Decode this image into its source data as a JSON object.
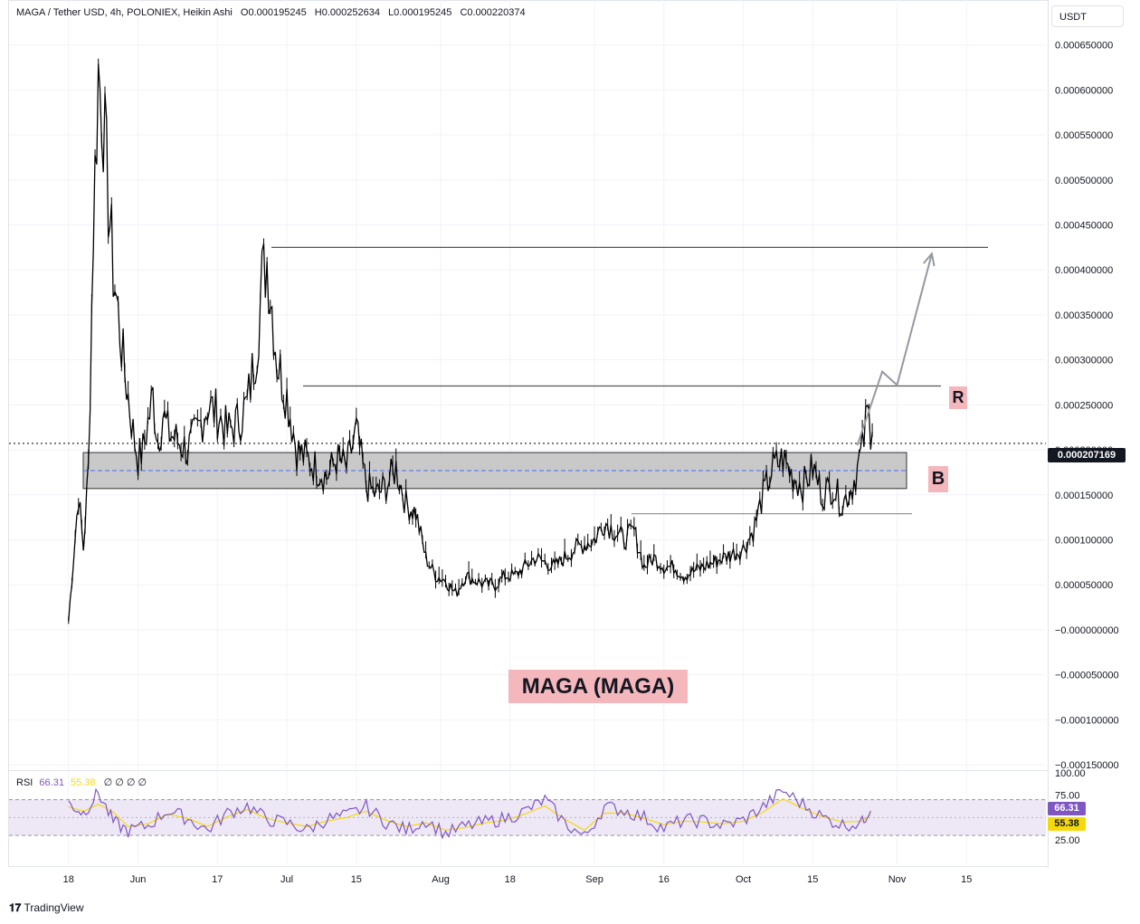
{
  "header": {
    "pair": "MAGA / Tether USD, 4h, POLONIEX, Heikin Ashi",
    "open": "O0.000195245",
    "high": "H0.000252634",
    "low": "L0.000195245",
    "close": "C0.000220374"
  },
  "currency_selector": "USDT",
  "last_price_label": "0.000207169",
  "annotations": {
    "resistance": "R",
    "breakout": "B",
    "title": "MAGA (MAGA)"
  },
  "rsi": {
    "label": "RSI",
    "value": "66.31",
    "ma_value": "55.38",
    "extra": "∅ ∅ ∅ ∅",
    "tag_value": "66.31",
    "tag_ma": "55.38"
  },
  "footer": {
    "brand": "TradingView"
  },
  "colors": {
    "candles": "#000000",
    "zone_fill": "#c3c3c3",
    "dashed": "#4a6cf7",
    "arrow": "#9598a1",
    "rsi_line": "#7e57c2",
    "rsi_ma": "#f5d90a",
    "rsi_band": "#ede7f6",
    "annotation_bg": "#f4b7bc"
  },
  "chart_data": {
    "type": "line",
    "title": "MAGA / Tether USD, 4h, POLONIEX, Heikin Ashi",
    "y_axis_ticks": [
      "0.000650000",
      "0.000600000",
      "0.000550000",
      "0.000500000",
      "0.000450000",
      "0.000400000",
      "0.000350000",
      "0.000300000",
      "0.000250000",
      "0.000200000",
      "0.000150000",
      "0.000100000",
      "0.000050000",
      "−0.000000000",
      "−0.000050000",
      "−0.000100000",
      "−0.000150000"
    ],
    "y_tick_values": [
      0.00065,
      0.0006,
      0.00055,
      0.0005,
      0.00045,
      0.0004,
      0.00035,
      0.0003,
      0.00025,
      0.0002,
      0.00015,
      0.0001,
      5e-05,
      0,
      -5e-05,
      -0.0001,
      -0.00015
    ],
    "ylim": [
      -0.000155,
      0.0007
    ],
    "x_axis_ticks": [
      {
        "label": "18",
        "day": 0
      },
      {
        "label": "Jun",
        "day": 14
      },
      {
        "label": "17",
        "day": 30
      },
      {
        "label": "Jul",
        "day": 44
      },
      {
        "label": "15",
        "day": 58
      },
      {
        "label": "Aug",
        "day": 75
      },
      {
        "label": "18",
        "day": 89
      },
      {
        "label": "Sep",
        "day": 106
      },
      {
        "label": "16",
        "day": 120
      },
      {
        "label": "Oct",
        "day": 136
      },
      {
        "label": "15",
        "day": 150
      },
      {
        "label": "Nov",
        "day": 167
      },
      {
        "label": "15",
        "day": 181
      }
    ],
    "xlim": [
      -12,
      197
    ],
    "price_series": {
      "name": "MAGA/USDT",
      "day": [
        0,
        1,
        2,
        3,
        4,
        5,
        6,
        7,
        8,
        9,
        10,
        11,
        12,
        13,
        14,
        15,
        16,
        17,
        18,
        19,
        20,
        22,
        24,
        26,
        28,
        30,
        32,
        34,
        36,
        38,
        39,
        40,
        41,
        42,
        43,
        44,
        46,
        48,
        50,
        52,
        54,
        56,
        58,
        60,
        62,
        64,
        66,
        68,
        70,
        72,
        74,
        76,
        78,
        80,
        82,
        84,
        86,
        88,
        90,
        94,
        98,
        102,
        106,
        108,
        110,
        112,
        114,
        116,
        118,
        120,
        122,
        124,
        128,
        132,
        136,
        138,
        140,
        142,
        144,
        146,
        148,
        150,
        152,
        154,
        156,
        158,
        159,
        160,
        161,
        162
      ],
      "price": [
        1e-05,
        8e-05,
        0.00015,
        9e-05,
        0.00018,
        0.00045,
        0.00062,
        0.00057,
        0.00048,
        0.0004,
        0.00035,
        0.0003,
        0.00026,
        0.00022,
        0.00019,
        0.0002,
        0.00023,
        0.00026,
        0.00021,
        0.00024,
        0.00022,
        0.00021,
        0.0002,
        0.00022,
        0.00025,
        0.00024,
        0.00022,
        0.00023,
        0.00025,
        0.00032,
        0.00039,
        0.00041,
        0.00036,
        0.0003,
        0.00028,
        0.00026,
        0.0002,
        0.00019,
        0.00018,
        0.00017,
        0.00019,
        0.00018,
        0.00022,
        0.00016,
        0.00015,
        0.00016,
        0.00018,
        0.00014,
        0.00013,
        8e-05,
        6e-05,
        5.5e-05,
        4e-05,
        6e-05,
        5.5e-05,
        5e-05,
        5e-05,
        6e-05,
        6e-05,
        8e-05,
        7e-05,
        9e-05,
        0.0001,
        0.00012,
        0.00011,
        0.0001,
        0.00011,
        7e-05,
        8e-05,
        7e-05,
        7e-05,
        6e-05,
        7e-05,
        8e-05,
        9e-05,
        0.00011,
        0.00015,
        0.00018,
        0.00019,
        0.00017,
        0.00016,
        0.00018,
        0.00015,
        0.00016,
        0.00014,
        0.00016,
        0.00018,
        0.0002,
        0.00024,
        0.00022
      ]
    },
    "levels": {
      "upper_target": 0.000425,
      "resistance": 0.000271,
      "last_price": 0.000207169,
      "zone_top": 0.000197,
      "zone_bottom": 0.000157,
      "zone_mid": 0.000177,
      "support_line": 0.000129
    },
    "projection_path": [
      {
        "day": 159,
        "price": 0.000205
      },
      {
        "day": 164,
        "price": 0.000287
      },
      {
        "day": 167,
        "price": 0.000272
      },
      {
        "day": 174,
        "price": 0.000418
      }
    ],
    "rsi_series": {
      "name": "RSI",
      "ylim": [
        0,
        100
      ],
      "ticks": [
        "100.00",
        "75.00",
        "25.00"
      ],
      "band": [
        30,
        70
      ],
      "day": [
        0,
        3,
        6,
        9,
        12,
        16,
        20,
        24,
        28,
        32,
        36,
        40,
        44,
        48,
        52,
        56,
        60,
        64,
        68,
        72,
        76,
        80,
        84,
        88,
        92,
        96,
        100,
        104,
        108,
        112,
        116,
        120,
        124,
        128,
        132,
        136,
        140,
        144,
        148,
        152,
        156,
        160,
        162
      ],
      "value": [
        66,
        55,
        78,
        45,
        35,
        41,
        58,
        49,
        36,
        55,
        63,
        48,
        44,
        36,
        48,
        52,
        62,
        45,
        36,
        47,
        32,
        40,
        45,
        49,
        57,
        70,
        44,
        28,
        62,
        58,
        50,
        38,
        47,
        46,
        41,
        47,
        62,
        80,
        65,
        50,
        42,
        44,
        66
      ],
      "ma": [
        62,
        57,
        65,
        56,
        40,
        43,
        54,
        49,
        40,
        51,
        59,
        49,
        44,
        40,
        46,
        50,
        57,
        47,
        40,
        44,
        36,
        39,
        44,
        47,
        54,
        63,
        48,
        36,
        55,
        55,
        49,
        42,
        46,
        45,
        43,
        46,
        56,
        71,
        60,
        51,
        45,
        46,
        55
      ]
    }
  }
}
